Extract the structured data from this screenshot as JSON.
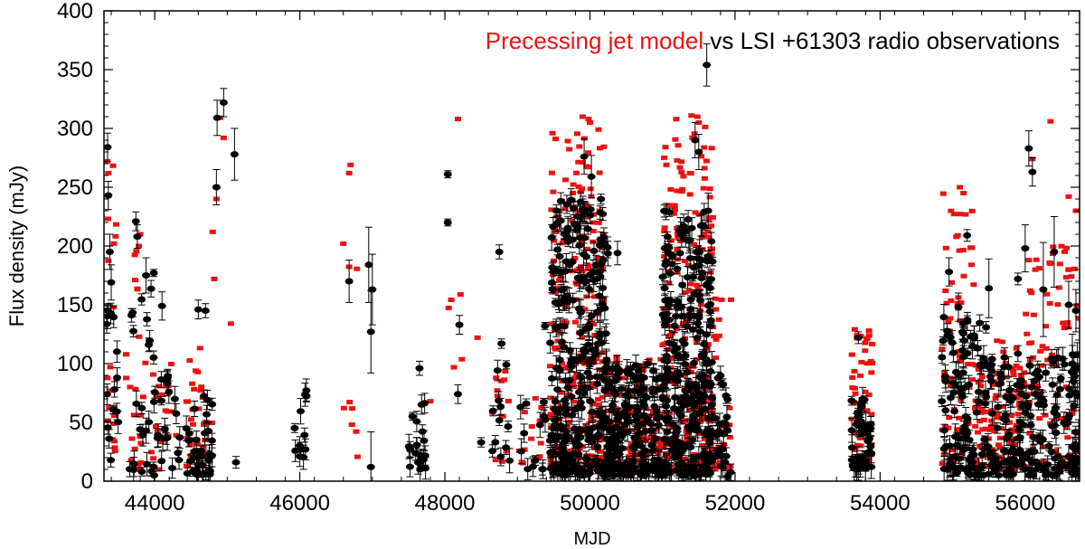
{
  "chart_data": {
    "type": "scatter",
    "title": {
      "model_part": "Precessing jet model",
      "rest": " vs LSI +61303 radio observations"
    },
    "xlabel": "MJD",
    "ylabel": "Flux density (mJy)",
    "xlim": [
      43300,
      56750
    ],
    "ylim": [
      0,
      400
    ],
    "xticks": [
      44000,
      46000,
      48000,
      50000,
      52000,
      54000,
      56000
    ],
    "yticks": [
      0,
      50,
      100,
      150,
      200,
      250,
      300,
      350,
      400
    ],
    "grid": false,
    "colors": {
      "model": "#ee1111",
      "observations": "#000000",
      "axes": "#000000"
    },
    "series": [
      {
        "name": "Precessing jet model",
        "marker": "square",
        "clusters": [
          {
            "x": [
              43330,
              43480
            ],
            "y": [
              10,
              270
            ],
            "n": 20
          },
          {
            "x": [
              43600,
              43900
            ],
            "y": [
              10,
              210
            ],
            "n": 25
          },
          {
            "x": [
              43950,
              44300
            ],
            "y": [
              10,
              100
            ],
            "n": 20
          },
          {
            "x": [
              44400,
              44800
            ],
            "y": [
              10,
              80
            ],
            "n": 30
          },
          {
            "x": [
              44450,
              44700
            ],
            "y": [
              80,
              150
            ],
            "n": 6
          },
          {
            "x": [
              46600,
              46800
            ],
            "y": [
              20,
              200
            ],
            "n": 8
          },
          {
            "x": [
              48000,
              48300
            ],
            "y": [
              80,
              160
            ],
            "n": 5
          },
          {
            "x": [
              48650,
              48900
            ],
            "y": [
              15,
              100
            ],
            "n": 12
          },
          {
            "x": [
              49000,
              49400
            ],
            "y": [
              15,
              80
            ],
            "n": 15
          },
          {
            "x": [
              49450,
              50200
            ],
            "y": [
              10,
              300
            ],
            "n": 260
          },
          {
            "x": [
              50200,
              51000
            ],
            "y": [
              10,
              110
            ],
            "n": 120
          },
          {
            "x": [
              51000,
              51700
            ],
            "y": [
              10,
              310
            ],
            "n": 240
          },
          {
            "x": [
              51700,
              51950
            ],
            "y": [
              10,
              190
            ],
            "n": 25
          },
          {
            "x": [
              53600,
              53900
            ],
            "y": [
              15,
              130
            ],
            "n": 60
          },
          {
            "x": [
              54850,
              55300
            ],
            "y": [
              10,
              250
            ],
            "n": 70
          },
          {
            "x": [
              55300,
              56000
            ],
            "y": [
              10,
              120
            ],
            "n": 120
          },
          {
            "x": [
              56000,
              56750
            ],
            "y": [
              10,
              200
            ],
            "n": 100
          }
        ],
        "points": [
          {
            "x": 43345,
            "y": 272
          },
          {
            "x": 43360,
            "y": 262
          },
          {
            "x": 43800,
            "y": 210
          },
          {
            "x": 43780,
            "y": 200
          },
          {
            "x": 44900,
            "y": 309
          },
          {
            "x": 44950,
            "y": 292
          },
          {
            "x": 44850,
            "y": 240
          },
          {
            "x": 44800,
            "y": 212
          },
          {
            "x": 44820,
            "y": 172
          },
          {
            "x": 45050,
            "y": 134
          },
          {
            "x": 46700,
            "y": 269
          },
          {
            "x": 46680,
            "y": 262
          },
          {
            "x": 46600,
            "y": 202
          },
          {
            "x": 47800,
            "y": 68
          },
          {
            "x": 48180,
            "y": 308
          },
          {
            "x": 48450,
            "y": 122
          },
          {
            "x": 49900,
            "y": 310
          },
          {
            "x": 49980,
            "y": 308
          },
          {
            "x": 50000,
            "y": 305
          },
          {
            "x": 51400,
            "y": 311
          },
          {
            "x": 51480,
            "y": 310
          },
          {
            "x": 51500,
            "y": 305
          },
          {
            "x": 55100,
            "y": 250
          },
          {
            "x": 55150,
            "y": 245
          },
          {
            "x": 56350,
            "y": 306
          },
          {
            "x": 56100,
            "y": 274
          },
          {
            "x": 56600,
            "y": 242
          },
          {
            "x": 56700,
            "y": 230
          }
        ]
      },
      {
        "name": "LSI +61303 radio observations",
        "marker": "circle",
        "clusters": [
          {
            "x": [
              43330,
              43500
            ],
            "y": [
              10,
              150
            ],
            "n": 15
          },
          {
            "x": [
              43600,
              44000
            ],
            "y": [
              5,
              180
            ],
            "n": 25
          },
          {
            "x": [
              44000,
              44350
            ],
            "y": [
              10,
              90
            ],
            "n": 20
          },
          {
            "x": [
              44400,
              44800
            ],
            "y": [
              5,
              80
            ],
            "n": 35
          },
          {
            "x": [
              45900,
              46100
            ],
            "y": [
              20,
              80
            ],
            "n": 12
          },
          {
            "x": [
              47500,
              47750
            ],
            "y": [
              10,
              70
            ],
            "n": 20
          },
          {
            "x": [
              48650,
              48900
            ],
            "y": [
              15,
              100
            ],
            "n": 12
          },
          {
            "x": [
              49000,
              49400
            ],
            "y": [
              10,
              70
            ],
            "n": 12
          },
          {
            "x": [
              49450,
              50250
            ],
            "y": [
              5,
              240
            ],
            "n": 300
          },
          {
            "x": [
              50250,
              51000
            ],
            "y": [
              5,
              100
            ],
            "n": 180
          },
          {
            "x": [
              51000,
              51700
            ],
            "y": [
              5,
              230
            ],
            "n": 260
          },
          {
            "x": [
              51700,
              51950
            ],
            "y": [
              5,
              90
            ],
            "n": 25
          },
          {
            "x": [
              53600,
              53900
            ],
            "y": [
              10,
              70
            ],
            "n": 50
          },
          {
            "x": [
              54850,
              55500
            ],
            "y": [
              5,
              140
            ],
            "n": 110
          },
          {
            "x": [
              55500,
              56750
            ],
            "y": [
              5,
              110
            ],
            "n": 180
          }
        ],
        "points": [
          {
            "x": 43350,
            "y": 284,
            "e": 12
          },
          {
            "x": 43360,
            "y": 243,
            "e": 12
          },
          {
            "x": 43380,
            "y": 195,
            "e": 15
          },
          {
            "x": 43400,
            "y": 169,
            "e": 15
          },
          {
            "x": 43740,
            "y": 221,
            "e": 8
          },
          {
            "x": 43760,
            "y": 208,
            "e": 10
          },
          {
            "x": 43880,
            "y": 175,
            "e": 15
          },
          {
            "x": 44100,
            "y": 149,
            "e": 12
          },
          {
            "x": 44600,
            "y": 146,
            "e": 8
          },
          {
            "x": 44700,
            "y": 145,
            "e": 6
          },
          {
            "x": 44860,
            "y": 309,
            "e": 15
          },
          {
            "x": 44950,
            "y": 322,
            "e": 12
          },
          {
            "x": 44850,
            "y": 250,
            "e": 15
          },
          {
            "x": 45100,
            "y": 278,
            "e": 22
          },
          {
            "x": 45120,
            "y": 16,
            "e": 5
          },
          {
            "x": 46680,
            "y": 170,
            "e": 18
          },
          {
            "x": 46950,
            "y": 184,
            "e": 32
          },
          {
            "x": 47000,
            "y": 163,
            "e": 30
          },
          {
            "x": 46980,
            "y": 127,
            "e": 35
          },
          {
            "x": 46980,
            "y": 12,
            "e": 30
          },
          {
            "x": 47650,
            "y": 96,
            "e": 6
          },
          {
            "x": 48040,
            "y": 261,
            "e": 3
          },
          {
            "x": 48040,
            "y": 220,
            "e": 3
          },
          {
            "x": 48200,
            "y": 133,
            "e": 8
          },
          {
            "x": 48180,
            "y": 74,
            "e": 8
          },
          {
            "x": 48500,
            "y": 33,
            "e": 4
          },
          {
            "x": 48750,
            "y": 195,
            "e": 6
          },
          {
            "x": 48780,
            "y": 117,
            "e": 4
          },
          {
            "x": 49120,
            "y": 66,
            "e": 4
          },
          {
            "x": 49380,
            "y": 132,
            "e": 3
          },
          {
            "x": 49920,
            "y": 276,
            "e": 15
          },
          {
            "x": 50020,
            "y": 259,
            "e": 18
          },
          {
            "x": 50380,
            "y": 194,
            "e": 10
          },
          {
            "x": 51450,
            "y": 290,
            "e": 15
          },
          {
            "x": 51500,
            "y": 280,
            "e": 15
          },
          {
            "x": 51610,
            "y": 354,
            "e": 18
          },
          {
            "x": 51630,
            "y": 230,
            "e": 15
          },
          {
            "x": 51900,
            "y": 4,
            "e": 3
          },
          {
            "x": 53700,
            "y": 122,
            "e": 5
          },
          {
            "x": 54950,
            "y": 178,
            "e": 12
          },
          {
            "x": 55080,
            "y": 148,
            "e": 12
          },
          {
            "x": 55200,
            "y": 209,
            "e": 5
          },
          {
            "x": 55500,
            "y": 164,
            "e": 25
          },
          {
            "x": 56050,
            "y": 283,
            "e": 15
          },
          {
            "x": 56100,
            "y": 263,
            "e": 12
          },
          {
            "x": 55900,
            "y": 172,
            "e": 5
          },
          {
            "x": 56000,
            "y": 198,
            "e": 20
          },
          {
            "x": 56250,
            "y": 163,
            "e": 40
          },
          {
            "x": 56400,
            "y": 195,
            "e": 30
          },
          {
            "x": 56600,
            "y": 150,
            "e": 20
          },
          {
            "x": 56700,
            "y": 145,
            "e": 18
          },
          {
            "x": 56650,
            "y": 100,
            "e": 25
          }
        ]
      }
    ]
  }
}
